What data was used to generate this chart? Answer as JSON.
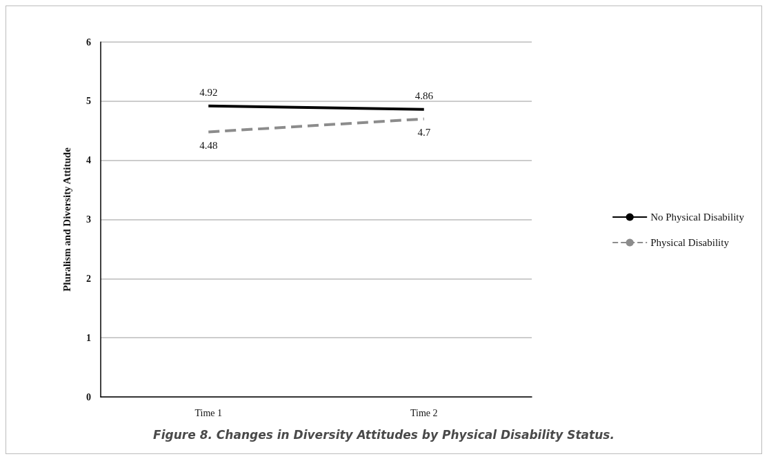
{
  "chart_data": {
    "type": "line",
    "title": "Figure 8. Changes in Diversity Attitudes by Physical Disability Status.",
    "ylabel": "Pluralism and Diversity Attitude",
    "categories": [
      "Time 1",
      "Time 2"
    ],
    "series": [
      {
        "name": "No Physical Disability",
        "color": "#000000",
        "values": [
          4.92,
          4.86
        ],
        "line_style": "solid"
      },
      {
        "name": "Physical Disability",
        "color": "#8c8c8c",
        "values": [
          4.48,
          4.7
        ],
        "line_style": "dashed"
      }
    ],
    "ylim": [
      0,
      6
    ],
    "yticks": [
      0,
      1,
      2,
      3,
      4,
      5,
      6
    ],
    "grid": "y",
    "legend": "right",
    "data_labels": true
  }
}
